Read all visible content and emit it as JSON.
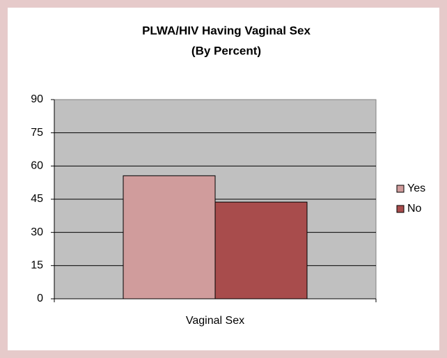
{
  "chart_data": {
    "type": "bar",
    "title": "PLWA/HIV Having Vaginal Sex",
    "subtitle": "(By Percent)",
    "categories": [
      "Vaginal Sex"
    ],
    "series": [
      {
        "name": "Yes",
        "color": "#d09c9c",
        "values": [
          55.6
        ]
      },
      {
        "name": "No",
        "color": "#a84c4c",
        "values": [
          43.7
        ]
      }
    ],
    "ylim": [
      0,
      90
    ],
    "yticks": [
      0,
      15,
      30,
      45,
      60,
      75,
      90
    ],
    "grid": true,
    "legend": "right"
  }
}
